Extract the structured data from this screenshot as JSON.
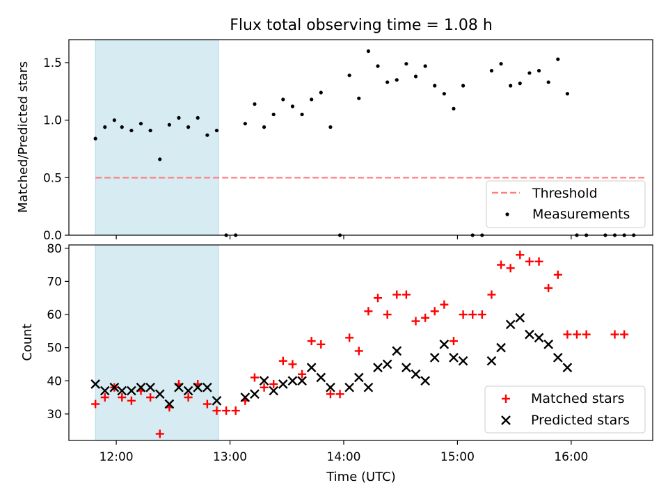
{
  "chart_data": {
    "title": "Flux total observing time = 1.08 h",
    "xlabel": "Time (UTC)",
    "xticks": [
      "12:00",
      "13:00",
      "14:00",
      "15:00",
      "16:00"
    ],
    "xlim": [
      "11:35",
      "16:43"
    ],
    "shaded_span": [
      "11:49",
      "12:54"
    ],
    "shade_color": "#add8e6",
    "panels": [
      {
        "type": "scatter",
        "ylabel": "Matched/Predicted stars",
        "ylim": [
          0,
          1.7
        ],
        "yticks": [
          "0.0",
          "0.5",
          "1.0",
          "1.5"
        ],
        "threshold": {
          "name": "Threshold",
          "value": 0.5,
          "x": [
            "11:49",
            "16:39"
          ],
          "color": "#ff7f7f"
        },
        "legend": {
          "location": "lower right",
          "entries": [
            "Threshold",
            "Measurements"
          ]
        },
        "series": [
          {
            "name": "Measurements",
            "color": "#000000",
            "marker": "dot",
            "points": [
              [
                "11:49",
                0.84
              ],
              [
                "11:54",
                0.94
              ],
              [
                "11:59",
                1.0
              ],
              [
                "12:03",
                0.94
              ],
              [
                "12:08",
                0.91
              ],
              [
                "12:13",
                0.97
              ],
              [
                "12:18",
                0.91
              ],
              [
                "12:23",
                0.66
              ],
              [
                "12:28",
                0.96
              ],
              [
                "12:33",
                1.02
              ],
              [
                "12:38",
                0.94
              ],
              [
                "12:43",
                1.02
              ],
              [
                "12:48",
                0.87
              ],
              [
                "12:53",
                0.91
              ],
              [
                "12:58",
                0.0
              ],
              [
                "13:03",
                0.0
              ],
              [
                "13:08",
                0.97
              ],
              [
                "13:13",
                1.14
              ],
              [
                "13:18",
                0.94
              ],
              [
                "13:23",
                1.05
              ],
              [
                "13:28",
                1.18
              ],
              [
                "13:33",
                1.12
              ],
              [
                "13:38",
                1.05
              ],
              [
                "13:43",
                1.18
              ],
              [
                "13:48",
                1.24
              ],
              [
                "13:53",
                0.94
              ],
              [
                "13:58",
                0.0
              ],
              [
                "14:03",
                1.39
              ],
              [
                "14:08",
                1.19
              ],
              [
                "14:13",
                1.6
              ],
              [
                "14:18",
                1.47
              ],
              [
                "14:23",
                1.33
              ],
              [
                "14:28",
                1.35
              ],
              [
                "14:33",
                1.49
              ],
              [
                "14:38",
                1.38
              ],
              [
                "14:43",
                1.47
              ],
              [
                "14:48",
                1.3
              ],
              [
                "14:53",
                1.23
              ],
              [
                "14:58",
                1.1
              ],
              [
                "15:03",
                1.3
              ],
              [
                "15:08",
                0.0
              ],
              [
                "15:13",
                0.0
              ],
              [
                "15:18",
                1.43
              ],
              [
                "15:23",
                1.49
              ],
              [
                "15:28",
                1.3
              ],
              [
                "15:33",
                1.32
              ],
              [
                "15:38",
                1.41
              ],
              [
                "15:43",
                1.43
              ],
              [
                "15:48",
                1.33
              ],
              [
                "15:53",
                1.53
              ],
              [
                "15:58",
                1.23
              ],
              [
                "16:03",
                0.0
              ],
              [
                "16:08",
                0.0
              ],
              [
                "16:18",
                0.0
              ],
              [
                "16:23",
                0.0
              ],
              [
                "16:28",
                0.0
              ],
              [
                "16:33",
                0.0
              ]
            ]
          }
        ]
      },
      {
        "type": "scatter",
        "ylabel": "Count",
        "ylim": [
          22,
          81
        ],
        "yticks": [
          "30",
          "40",
          "50",
          "60",
          "70",
          "80"
        ],
        "legend": {
          "location": "lower right",
          "entries": [
            "Matched stars",
            "Predicted stars"
          ]
        },
        "series": [
          {
            "name": "Matched stars",
            "color": "#ff0000",
            "marker": "plus",
            "points": [
              [
                "11:49",
                33
              ],
              [
                "11:54",
                35
              ],
              [
                "11:59",
                38
              ],
              [
                "12:03",
                35
              ],
              [
                "12:08",
                34
              ],
              [
                "12:13",
                37
              ],
              [
                "12:18",
                35
              ],
              [
                "12:23",
                24
              ],
              [
                "12:28",
                32
              ],
              [
                "12:33",
                39
              ],
              [
                "12:38",
                35
              ],
              [
                "12:43",
                39
              ],
              [
                "12:48",
                33
              ],
              [
                "12:53",
                31
              ],
              [
                "12:58",
                31
              ],
              [
                "13:03",
                31
              ],
              [
                "13:08",
                34
              ],
              [
                "13:13",
                41
              ],
              [
                "13:18",
                38
              ],
              [
                "13:23",
                39
              ],
              [
                "13:28",
                46
              ],
              [
                "13:33",
                45
              ],
              [
                "13:38",
                42
              ],
              [
                "13:43",
                52
              ],
              [
                "13:48",
                51
              ],
              [
                "13:53",
                36
              ],
              [
                "13:58",
                36
              ],
              [
                "14:03",
                53
              ],
              [
                "14:08",
                49
              ],
              [
                "14:13",
                61
              ],
              [
                "14:18",
                65
              ],
              [
                "14:23",
                60
              ],
              [
                "14:28",
                66
              ],
              [
                "14:33",
                66
              ],
              [
                "14:38",
                58
              ],
              [
                "14:43",
                59
              ],
              [
                "14:48",
                61
              ],
              [
                "14:53",
                63
              ],
              [
                "14:58",
                52
              ],
              [
                "15:03",
                60
              ],
              [
                "15:08",
                60
              ],
              [
                "15:13",
                60
              ],
              [
                "15:18",
                66
              ],
              [
                "15:23",
                75
              ],
              [
                "15:28",
                74
              ],
              [
                "15:33",
                78
              ],
              [
                "15:38",
                76
              ],
              [
                "15:43",
                76
              ],
              [
                "15:48",
                68
              ],
              [
                "15:53",
                72
              ],
              [
                "15:58",
                54
              ],
              [
                "16:03",
                54
              ],
              [
                "16:08",
                54
              ],
              [
                "16:23",
                54
              ],
              [
                "16:28",
                54
              ]
            ]
          },
          {
            "name": "Predicted stars",
            "color": "#000000",
            "marker": "x",
            "points": [
              [
                "11:49",
                39
              ],
              [
                "11:54",
                37
              ],
              [
                "11:59",
                38
              ],
              [
                "12:03",
                37
              ],
              [
                "12:08",
                37
              ],
              [
                "12:13",
                38
              ],
              [
                "12:18",
                38
              ],
              [
                "12:23",
                36
              ],
              [
                "12:28",
                33
              ],
              [
                "12:33",
                38
              ],
              [
                "12:38",
                37
              ],
              [
                "12:43",
                38
              ],
              [
                "12:48",
                38
              ],
              [
                "12:53",
                34
              ],
              [
                "13:08",
                35
              ],
              [
                "13:13",
                36
              ],
              [
                "13:18",
                40
              ],
              [
                "13:23",
                37
              ],
              [
                "13:28",
                39
              ],
              [
                "13:33",
                40
              ],
              [
                "13:38",
                40
              ],
              [
                "13:43",
                44
              ],
              [
                "13:48",
                41
              ],
              [
                "13:53",
                38
              ],
              [
                "14:03",
                38
              ],
              [
                "14:08",
                41
              ],
              [
                "14:13",
                38
              ],
              [
                "14:18",
                44
              ],
              [
                "14:23",
                45
              ],
              [
                "14:28",
                49
              ],
              [
                "14:33",
                44
              ],
              [
                "14:38",
                42
              ],
              [
                "14:43",
                40
              ],
              [
                "14:48",
                47
              ],
              [
                "14:53",
                51
              ],
              [
                "14:58",
                47
              ],
              [
                "15:03",
                46
              ],
              [
                "15:18",
                46
              ],
              [
                "15:23",
                50
              ],
              [
                "15:28",
                57
              ],
              [
                "15:33",
                59
              ],
              [
                "15:38",
                54
              ],
              [
                "15:43",
                53
              ],
              [
                "15:48",
                51
              ],
              [
                "15:53",
                47
              ],
              [
                "15:58",
                44
              ]
            ]
          }
        ]
      }
    ]
  }
}
